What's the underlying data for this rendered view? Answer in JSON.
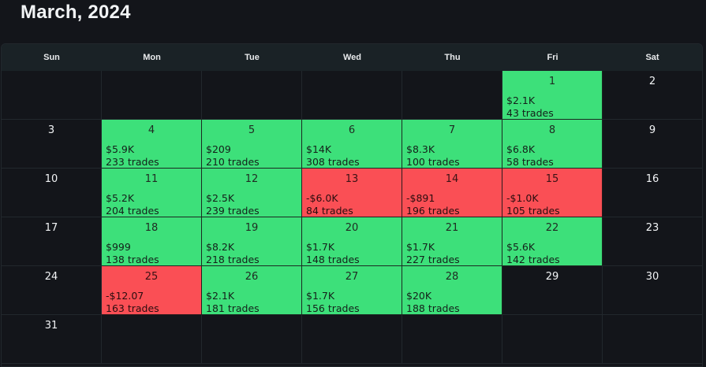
{
  "title": "March, 2024",
  "weekdays": [
    "Sun",
    "Mon",
    "Tue",
    "Wed",
    "Thu",
    "Fri",
    "Sat"
  ],
  "colors": {
    "profit": "#3de07a",
    "loss": "#fa4f55",
    "background": "#13151a",
    "header": "#1a2226"
  },
  "days": [
    {
      "day": "1",
      "amount": "$2.1K",
      "trades": "43 trades",
      "status": "profit"
    },
    {
      "day": "2"
    },
    {
      "day": "3"
    },
    {
      "day": "4",
      "amount": "$5.9K",
      "trades": "233 trades",
      "status": "profit"
    },
    {
      "day": "5",
      "amount": "$209",
      "trades": "210 trades",
      "status": "profit"
    },
    {
      "day": "6",
      "amount": "$14K",
      "trades": "308 trades",
      "status": "profit"
    },
    {
      "day": "7",
      "amount": "$8.3K",
      "trades": "100 trades",
      "status": "profit"
    },
    {
      "day": "8",
      "amount": "$6.8K",
      "trades": "58 trades",
      "status": "profit"
    },
    {
      "day": "9"
    },
    {
      "day": "10"
    },
    {
      "day": "11",
      "amount": "$5.2K",
      "trades": "204 trades",
      "status": "profit"
    },
    {
      "day": "12",
      "amount": "$2.5K",
      "trades": "239 trades",
      "status": "profit"
    },
    {
      "day": "13",
      "amount": "-$6.0K",
      "trades": "84 trades",
      "status": "loss"
    },
    {
      "day": "14",
      "amount": "-$891",
      "trades": "196 trades",
      "status": "loss"
    },
    {
      "day": "15",
      "amount": "-$1.0K",
      "trades": "105 trades",
      "status": "loss"
    },
    {
      "day": "16"
    },
    {
      "day": "17"
    },
    {
      "day": "18",
      "amount": "$999",
      "trades": "138 trades",
      "status": "profit"
    },
    {
      "day": "19",
      "amount": "$8.2K",
      "trades": "218 trades",
      "status": "profit"
    },
    {
      "day": "20",
      "amount": "$1.7K",
      "trades": "148 trades",
      "status": "profit"
    },
    {
      "day": "21",
      "amount": "$1.7K",
      "trades": "227 trades",
      "status": "profit"
    },
    {
      "day": "22",
      "amount": "$5.6K",
      "trades": "142 trades",
      "status": "profit"
    },
    {
      "day": "23"
    },
    {
      "day": "24"
    },
    {
      "day": "25",
      "amount": "-$12.07",
      "trades": "163 trades",
      "status": "loss"
    },
    {
      "day": "26",
      "amount": "$2.1K",
      "trades": "181 trades",
      "status": "profit"
    },
    {
      "day": "27",
      "amount": "$1.7K",
      "trades": "156 trades",
      "status": "profit"
    },
    {
      "day": "28",
      "amount": "$20K",
      "trades": "188 trades",
      "status": "profit"
    },
    {
      "day": "29"
    },
    {
      "day": "30"
    },
    {
      "day": "31"
    }
  ]
}
